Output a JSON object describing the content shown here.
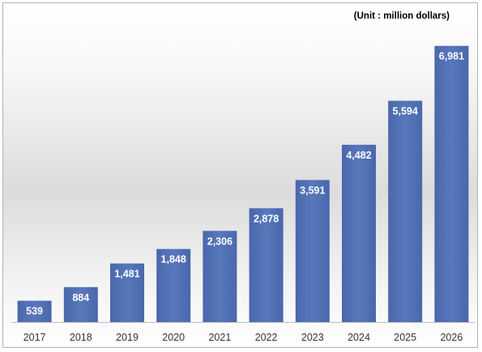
{
  "chart_data": {
    "type": "bar",
    "unit_note": "(Unit : million dollars)",
    "categories": [
      "2017",
      "2018",
      "2019",
      "2020",
      "2021",
      "2022",
      "2023",
      "2024",
      "2025",
      "2026"
    ],
    "values": [
      539,
      884,
      1481,
      1848,
      2306,
      2878,
      3591,
      4482,
      5594,
      6981
    ],
    "value_labels": [
      "539",
      "884",
      "1,481",
      "1,848",
      "2,306",
      "2,878",
      "3,591",
      "4,482",
      "5,594",
      "6,981"
    ],
    "ylim": [
      0,
      7200
    ],
    "grid": false,
    "legend": "none",
    "bar_color": "#5674b9",
    "bar_label_color": "#ffffff"
  }
}
